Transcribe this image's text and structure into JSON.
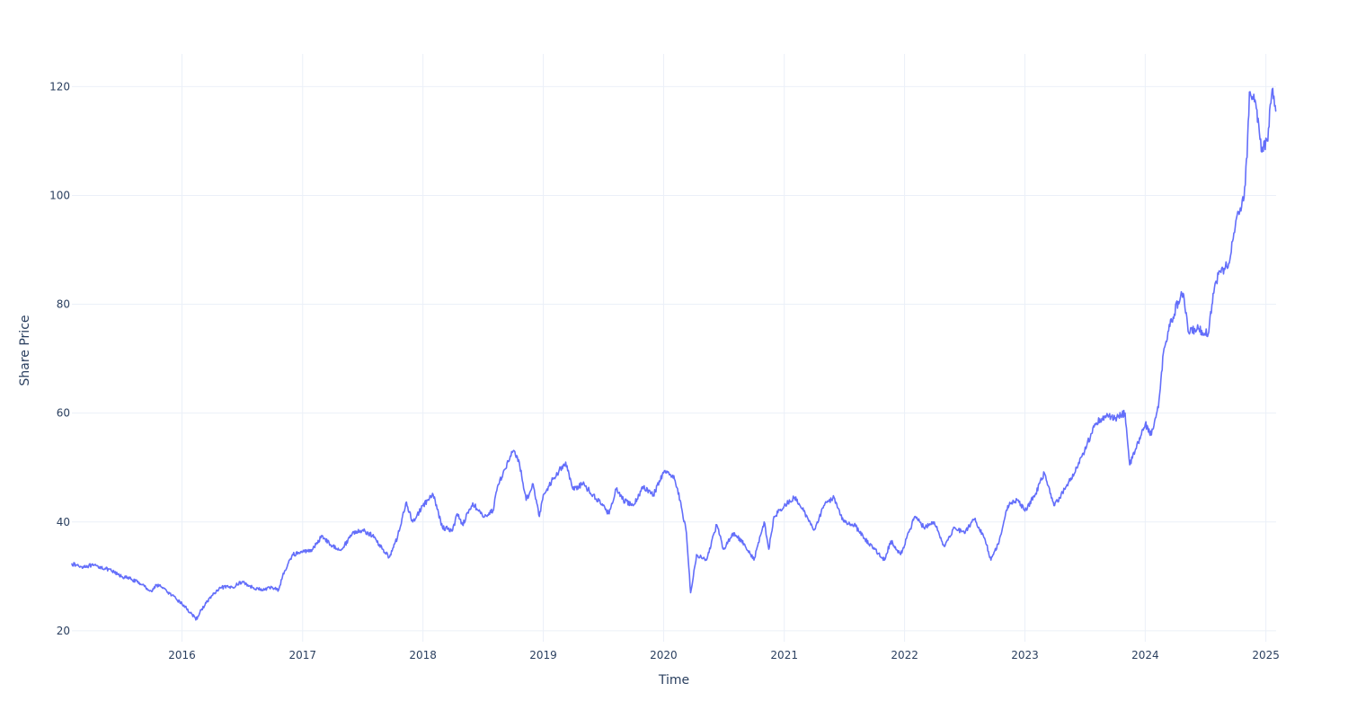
{
  "chart_data": {
    "type": "line",
    "title": "",
    "xlabel": "Time",
    "ylabel": "Share Price",
    "x_ticks": [
      "2016",
      "2017",
      "2018",
      "2019",
      "2020",
      "2021",
      "2022",
      "2023",
      "2024",
      "2025"
    ],
    "y_ticks": [
      20,
      40,
      60,
      80,
      100,
      120
    ],
    "xlim": [
      "2015-02-01",
      "2025-02-01"
    ],
    "ylim": [
      18,
      126
    ],
    "grid": true,
    "legend": "none",
    "colors": {
      "line": "#636efa",
      "grid": "#ebf0f8",
      "text": "#2a3f5f"
    },
    "series": [
      {
        "points": [
          [
            "2015-02-01",
            32.3
          ],
          [
            "2015-03-01",
            31.8
          ],
          [
            "2015-04-01",
            32.0
          ],
          [
            "2015-05-01",
            31.7
          ],
          [
            "2015-06-01",
            31.0
          ],
          [
            "2015-07-01",
            30.0
          ],
          [
            "2015-08-01",
            29.5
          ],
          [
            "2015-09-01",
            28.5
          ],
          [
            "2015-10-01",
            27.2
          ],
          [
            "2015-10-15",
            28.5
          ],
          [
            "2015-11-01",
            28.0
          ],
          [
            "2015-12-01",
            26.5
          ],
          [
            "2016-01-01",
            25.0
          ],
          [
            "2016-02-01",
            23.0
          ],
          [
            "2016-02-12",
            22.0
          ],
          [
            "2016-03-01",
            24.0
          ],
          [
            "2016-04-01",
            26.5
          ],
          [
            "2016-05-01",
            28.0
          ],
          [
            "2016-06-01",
            28.0
          ],
          [
            "2016-07-01",
            29.0
          ],
          [
            "2016-08-01",
            28.0
          ],
          [
            "2016-09-01",
            27.5
          ],
          [
            "2016-10-01",
            28.0
          ],
          [
            "2016-10-20",
            27.5
          ],
          [
            "2016-11-01",
            30.0
          ],
          [
            "2016-12-01",
            34.0
          ],
          [
            "2017-01-01",
            34.5
          ],
          [
            "2017-02-01",
            35.0
          ],
          [
            "2017-03-01",
            37.5
          ],
          [
            "2017-04-01",
            35.5
          ],
          [
            "2017-05-01",
            35.0
          ],
          [
            "2017-06-01",
            38.0
          ],
          [
            "2017-07-01",
            38.5
          ],
          [
            "2017-08-01",
            37.5
          ],
          [
            "2017-09-01",
            35.0
          ],
          [
            "2017-09-20",
            33.5
          ],
          [
            "2017-10-15",
            37.0
          ],
          [
            "2017-11-10",
            43.5
          ],
          [
            "2017-12-01",
            40.0
          ],
          [
            "2018-01-01",
            43.0
          ],
          [
            "2018-02-01",
            45.0
          ],
          [
            "2018-03-01",
            39.0
          ],
          [
            "2018-04-01",
            38.5
          ],
          [
            "2018-04-15",
            41.5
          ],
          [
            "2018-05-01",
            39.5
          ],
          [
            "2018-06-01",
            43.5
          ],
          [
            "2018-07-01",
            41.0
          ],
          [
            "2018-08-01",
            42.0
          ],
          [
            "2018-08-15",
            46.5
          ],
          [
            "2018-09-01",
            49.0
          ],
          [
            "2018-10-01",
            53.0
          ],
          [
            "2018-10-20",
            51.0
          ],
          [
            "2018-11-10",
            44.0
          ],
          [
            "2018-12-01",
            47.0
          ],
          [
            "2018-12-20",
            41.0
          ],
          [
            "2019-01-01",
            45.0
          ],
          [
            "2019-02-01",
            48.0
          ],
          [
            "2019-03-10",
            51.0
          ],
          [
            "2019-04-01",
            46.0
          ],
          [
            "2019-05-01",
            47.0
          ],
          [
            "2019-06-01",
            45.0
          ],
          [
            "2019-07-01",
            43.0
          ],
          [
            "2019-07-20",
            41.5
          ],
          [
            "2019-08-10",
            46.0
          ],
          [
            "2019-09-01",
            44.0
          ],
          [
            "2019-10-01",
            43.0
          ],
          [
            "2019-11-01",
            46.5
          ],
          [
            "2019-12-01",
            45.0
          ],
          [
            "2020-01-01",
            49.0
          ],
          [
            "2020-02-01",
            48.5
          ],
          [
            "2020-02-20",
            44.0
          ],
          [
            "2020-03-10",
            38.0
          ],
          [
            "2020-03-23",
            27.0
          ],
          [
            "2020-04-10",
            34.0
          ],
          [
            "2020-05-10",
            33.0
          ],
          [
            "2020-06-10",
            39.5
          ],
          [
            "2020-07-01",
            35.0
          ],
          [
            "2020-08-01",
            38.0
          ],
          [
            "2020-09-01",
            36.0
          ],
          [
            "2020-10-01",
            33.0
          ],
          [
            "2020-11-01",
            40.0
          ],
          [
            "2020-11-15",
            35.0
          ],
          [
            "2020-12-01",
            41.0
          ],
          [
            "2021-01-01",
            43.0
          ],
          [
            "2021-02-01",
            44.5
          ],
          [
            "2021-03-01",
            42.0
          ],
          [
            "2021-04-01",
            38.5
          ],
          [
            "2021-05-01",
            43.0
          ],
          [
            "2021-06-01",
            44.5
          ],
          [
            "2021-07-01",
            40.0
          ],
          [
            "2021-08-01",
            39.5
          ],
          [
            "2021-09-01",
            37.0
          ],
          [
            "2021-10-01",
            35.0
          ],
          [
            "2021-11-01",
            33.0
          ],
          [
            "2021-11-20",
            36.5
          ],
          [
            "2021-12-20",
            34.0
          ],
          [
            "2022-02-01",
            41.0
          ],
          [
            "2022-03-01",
            39.0
          ],
          [
            "2022-04-01",
            40.0
          ],
          [
            "2022-05-01",
            35.5
          ],
          [
            "2022-06-01",
            39.0
          ],
          [
            "2022-07-01",
            38.0
          ],
          [
            "2022-08-01",
            40.5
          ],
          [
            "2022-09-01",
            37.0
          ],
          [
            "2022-09-20",
            33.0
          ],
          [
            "2022-10-15",
            36.5
          ],
          [
            "2022-11-10",
            43.0
          ],
          [
            "2022-12-10",
            44.0
          ],
          [
            "2023-01-01",
            42.0
          ],
          [
            "2023-02-01",
            45.0
          ],
          [
            "2023-03-01",
            49.0
          ],
          [
            "2023-04-01",
            43.0
          ],
          [
            "2023-05-01",
            46.0
          ],
          [
            "2023-06-01",
            49.0
          ],
          [
            "2023-07-01",
            53.0
          ],
          [
            "2023-08-01",
            58.0
          ],
          [
            "2023-09-01",
            59.5
          ],
          [
            "2023-10-01",
            59.0
          ],
          [
            "2023-11-01",
            60.0
          ],
          [
            "2023-11-15",
            50.5
          ],
          [
            "2023-12-01",
            53.0
          ],
          [
            "2024-01-01",
            58.0
          ],
          [
            "2024-01-20",
            56.0
          ],
          [
            "2024-02-10",
            61.0
          ],
          [
            "2024-02-25",
            71.0
          ],
          [
            "2024-03-10",
            75.0
          ],
          [
            "2024-04-10",
            80.5
          ],
          [
            "2024-04-25",
            82.0
          ],
          [
            "2024-05-10",
            75.0
          ],
          [
            "2024-06-10",
            75.5
          ],
          [
            "2024-07-10",
            74.5
          ],
          [
            "2024-07-25",
            82.0
          ],
          [
            "2024-08-10",
            85.5
          ],
          [
            "2024-09-10",
            87.5
          ],
          [
            "2024-10-10",
            97.0
          ],
          [
            "2024-10-25",
            99.0
          ],
          [
            "2024-11-05",
            107.0
          ],
          [
            "2024-11-12",
            119.0
          ],
          [
            "2024-12-01",
            117.0
          ],
          [
            "2024-12-20",
            108.0
          ],
          [
            "2025-01-05",
            110.0
          ],
          [
            "2025-01-20",
            119.5
          ],
          [
            "2025-01-31",
            115.5
          ]
        ]
      }
    ]
  }
}
